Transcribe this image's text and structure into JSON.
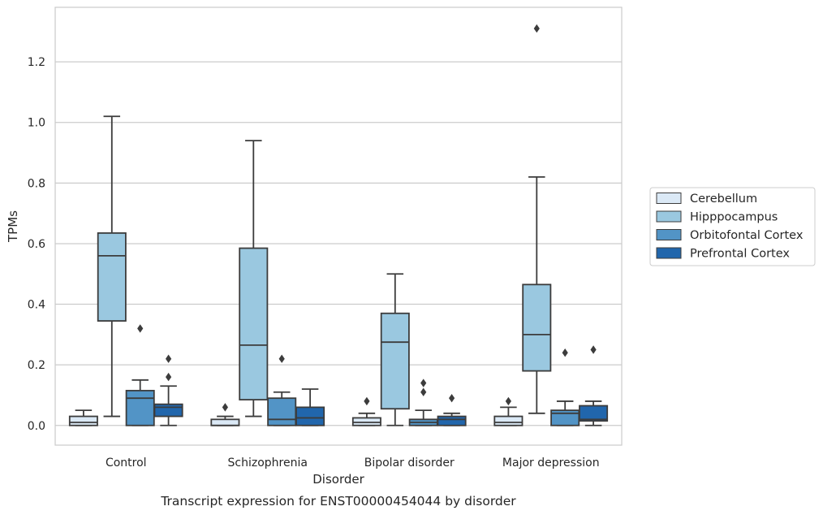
{
  "chart_data": {
    "type": "boxplot",
    "caption": "Transcript expression for ENST00000454044 by disorder",
    "xlabel": "Disorder",
    "ylabel": "TPMs",
    "ylim": [
      -0.065,
      1.38
    ],
    "yticks": [
      0.0,
      0.2,
      0.4,
      0.6,
      0.8,
      1.0,
      1.2
    ],
    "ytick_labels": [
      "0.0",
      "0.2",
      "0.4",
      "0.6",
      "0.8",
      "1.0",
      "1.2"
    ],
    "grid": "horizontal",
    "legend_position": "right",
    "categories": [
      "Control",
      "Schizophrenia",
      "Bipolar disorder",
      "Major depression"
    ],
    "series": [
      {
        "name": "Cerebellum",
        "color": "#dbe9f6",
        "boxes": [
          {
            "whisker_low": 0.0,
            "q1": 0.0,
            "median": 0.01,
            "q3": 0.03,
            "whisker_high": 0.05,
            "outliers": []
          },
          {
            "whisker_low": 0.0,
            "q1": 0.0,
            "median": 0.0,
            "q3": 0.02,
            "whisker_high": 0.03,
            "outliers": [
              0.06
            ]
          },
          {
            "whisker_low": 0.0,
            "q1": 0.0,
            "median": 0.01,
            "q3": 0.025,
            "whisker_high": 0.04,
            "outliers": [
              0.08
            ]
          },
          {
            "whisker_low": 0.0,
            "q1": 0.0,
            "median": 0.01,
            "q3": 0.03,
            "whisker_high": 0.06,
            "outliers": [
              0.08
            ]
          }
        ]
      },
      {
        "name": "Hipppocampus",
        "color": "#9ac8e0",
        "boxes": [
          {
            "whisker_low": 0.03,
            "q1": 0.345,
            "median": 0.56,
            "q3": 0.635,
            "whisker_high": 1.02,
            "outliers": []
          },
          {
            "whisker_low": 0.03,
            "q1": 0.085,
            "median": 0.265,
            "q3": 0.585,
            "whisker_high": 0.94,
            "outliers": []
          },
          {
            "whisker_low": 0.0,
            "q1": 0.055,
            "median": 0.275,
            "q3": 0.37,
            "whisker_high": 0.5,
            "outliers": []
          },
          {
            "whisker_low": 0.04,
            "q1": 0.18,
            "median": 0.3,
            "q3": 0.465,
            "whisker_high": 0.82,
            "outliers": [
              1.31
            ]
          }
        ]
      },
      {
        "name": "Orbitofontal Cortex",
        "color": "#5294c6",
        "boxes": [
          {
            "whisker_low": 0.0,
            "q1": 0.0,
            "median": 0.09,
            "q3": 0.115,
            "whisker_high": 0.15,
            "outliers": [
              0.32
            ]
          },
          {
            "whisker_low": 0.0,
            "q1": 0.0,
            "median": 0.02,
            "q3": 0.09,
            "whisker_high": 0.11,
            "outliers": [
              0.22
            ]
          },
          {
            "whisker_low": 0.0,
            "q1": 0.0,
            "median": 0.01,
            "q3": 0.02,
            "whisker_high": 0.05,
            "outliers": [
              0.14,
              0.11
            ]
          },
          {
            "whisker_low": 0.0,
            "q1": 0.0,
            "median": 0.04,
            "q3": 0.05,
            "whisker_high": 0.08,
            "outliers": [
              0.24
            ]
          }
        ]
      },
      {
        "name": "Prefrontal Cortex",
        "color": "#2166ac",
        "boxes": [
          {
            "whisker_low": 0.0,
            "q1": 0.03,
            "median": 0.06,
            "q3": 0.07,
            "whisker_high": 0.13,
            "outliers": [
              0.22,
              0.16
            ]
          },
          {
            "whisker_low": 0.0,
            "q1": 0.0,
            "median": 0.025,
            "q3": 0.06,
            "whisker_high": 0.12,
            "outliers": []
          },
          {
            "whisker_low": 0.0,
            "q1": 0.0,
            "median": 0.02,
            "q3": 0.03,
            "whisker_high": 0.04,
            "outliers": [
              0.09
            ]
          },
          {
            "whisker_low": 0.0,
            "q1": 0.015,
            "median": 0.02,
            "q3": 0.065,
            "whisker_high": 0.08,
            "outliers": [
              0.25
            ]
          }
        ]
      }
    ]
  }
}
